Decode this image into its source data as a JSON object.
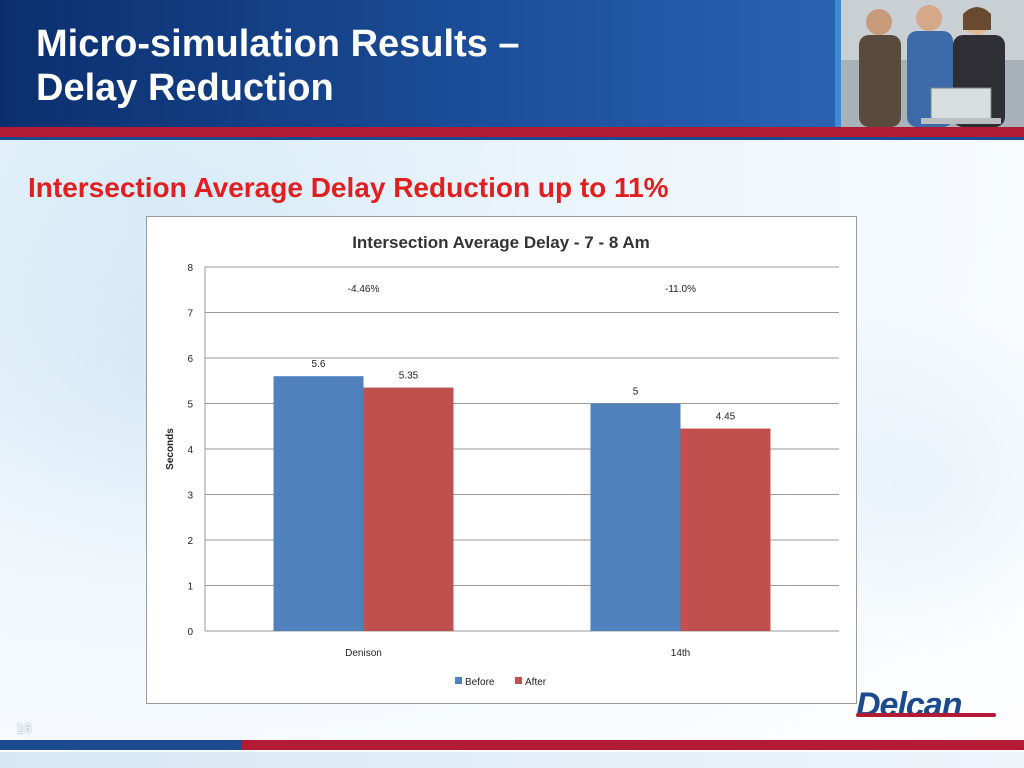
{
  "slide": {
    "title_line1": "Micro-simulation Results –",
    "title_line2": "Delay Reduction",
    "subtitle": "Intersection Average Delay Reduction up to 11%",
    "page_number": "16",
    "logo_text": "Delcan",
    "colors": {
      "header": "#1c4f9b",
      "accent_red": "#b31b34",
      "subtitle": "#e02020"
    }
  },
  "chart_data": {
    "type": "bar",
    "title": "Intersection Average Delay - 7 - 8 Am",
    "xlabel": "",
    "ylabel": "Seconds",
    "ylim": [
      0,
      8
    ],
    "yticks": [
      0,
      1,
      2,
      3,
      4,
      5,
      6,
      7,
      8
    ],
    "categories": [
      "Denison",
      "14th"
    ],
    "series": [
      {
        "name": "Before",
        "values": [
          5.6,
          5
        ],
        "labels": [
          "5.6",
          "5"
        ],
        "color": "#4f81bd"
      },
      {
        "name": "After",
        "values": [
          5.35,
          4.45
        ],
        "labels": [
          "5.35",
          "4.45"
        ],
        "color": "#c0504d"
      }
    ],
    "annotations": [
      "-4.46%",
      "-11.0%"
    ],
    "grid": true,
    "legend_position": "bottom"
  }
}
